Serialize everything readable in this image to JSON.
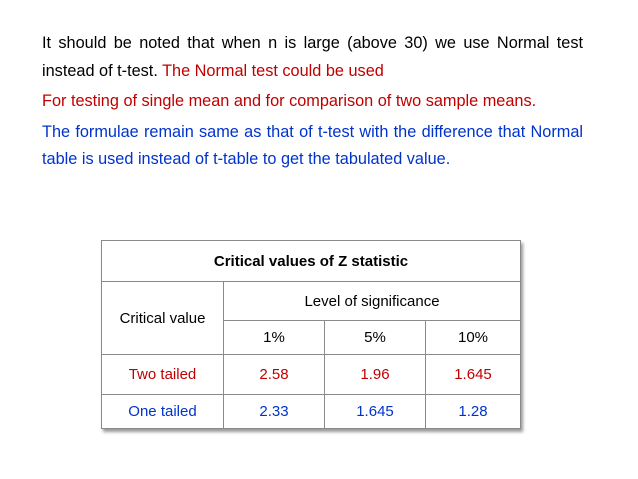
{
  "body": {
    "paragraphs": [
      {
        "black": "It should be noted that when n is large (above 30) we use Normal test instead of t-test.",
        "red": "The Normal test could be used"
      },
      {
        "red": "For testing of single mean and for comparison of two sample means."
      },
      {
        "blue": "The formulae remain same as that of t-test with the difference that Normal table is used instead of t-table to get the tabulated value."
      }
    ]
  },
  "table": {
    "title": "Critical values of Z statistic",
    "row_header": "Critical value",
    "group_header": "Level of significance",
    "columns": [
      "1%",
      "5%",
      "10%"
    ],
    "rows": [
      {
        "label": "Two tailed",
        "values": [
          "2.58",
          "1.96",
          "1.645"
        ]
      },
      {
        "label": "One tailed",
        "values": [
          "2.33",
          "1.645",
          "1.28"
        ]
      }
    ]
  }
}
